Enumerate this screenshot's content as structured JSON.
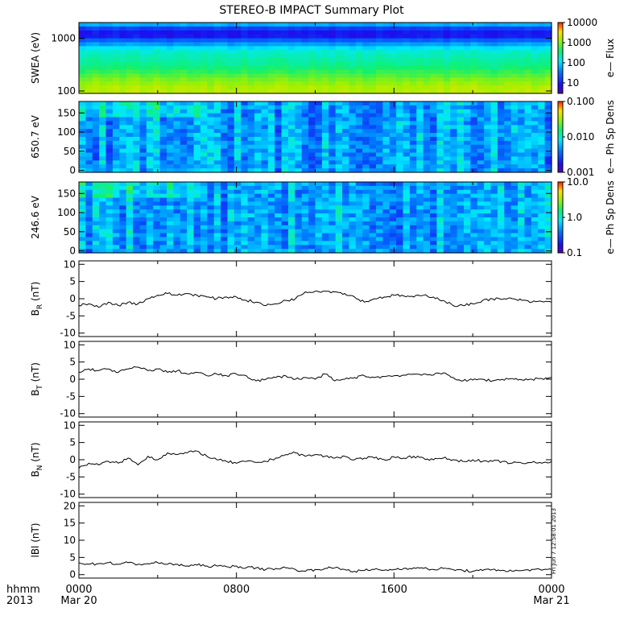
{
  "title": "STEREO-B IMPACT Summary Plot",
  "stamp": "Fri Jun  7 12:58:01 2013",
  "footer": {
    "left_top": "hhmm",
    "left_bottom": "2013",
    "ticks": [
      {
        "top": "0000",
        "bottom": "Mar 20",
        "hour": 0
      },
      {
        "top": "0800",
        "bottom": "",
        "hour": 8
      },
      {
        "top": "1600",
        "bottom": "",
        "hour": 16
      },
      {
        "top": "0000",
        "bottom": "Mar 21",
        "hour": 24
      }
    ]
  },
  "chart_data": [
    {
      "type": "heatmap",
      "ylabel": "SWEA (eV)",
      "ylog": true,
      "ylim": [
        90,
        2000
      ],
      "yticks": [
        {
          "v": 1000,
          "label": "1000"
        },
        {
          "v": 100,
          "label": "100"
        }
      ],
      "cbar_label": "e— Flux",
      "cbar_log": true,
      "cbar_range": [
        3,
        10000
      ],
      "cbar_ticks": [
        {
          "v": 10000,
          "label": "10000"
        },
        {
          "v": 1000,
          "label": "1000"
        },
        {
          "v": 100,
          "label": "100"
        },
        {
          "v": 10,
          "label": "10"
        }
      ],
      "profile": [
        [
          0,
          60
        ],
        [
          0.08,
          10
        ],
        [
          0.16,
          7
        ],
        [
          0.25,
          30
        ],
        [
          0.38,
          160
        ],
        [
          0.5,
          230
        ],
        [
          0.62,
          320
        ],
        [
          0.74,
          600
        ],
        [
          0.85,
          1100
        ],
        [
          0.93,
          1500
        ],
        [
          1,
          1700
        ]
      ],
      "variation": 0.25
    },
    {
      "type": "heatmap",
      "ylabel": "650.7 eV",
      "ylog": false,
      "ylim": [
        -5,
        180
      ],
      "yticks": [
        {
          "v": 150,
          "label": "150"
        },
        {
          "v": 100,
          "label": "100"
        },
        {
          "v": 50,
          "label": "50"
        },
        {
          "v": 0,
          "label": "0"
        }
      ],
      "cbar_label": "e— Ph Sp Dens",
      "cbar_log": true,
      "cbar_range": [
        0.001,
        0.1
      ],
      "cbar_ticks": [
        {
          "v": 0.1,
          "label": "0.100"
        },
        {
          "v": 0.01,
          "label": "0.010"
        },
        {
          "v": 0.001,
          "label": "0.001"
        }
      ],
      "level": 0.005,
      "variation": 0.6
    },
    {
      "type": "heatmap",
      "ylabel": "246.6 eV",
      "ylog": false,
      "ylim": [
        -5,
        180
      ],
      "yticks": [
        {
          "v": 150,
          "label": "150"
        },
        {
          "v": 100,
          "label": "100"
        },
        {
          "v": 50,
          "label": "50"
        },
        {
          "v": 0,
          "label": "0"
        }
      ],
      "cbar_label": "e— Ph Sp Dens",
      "cbar_log": true,
      "cbar_range": [
        0.1,
        10
      ],
      "cbar_ticks": [
        {
          "v": 10,
          "label": "10.0"
        },
        {
          "v": 1,
          "label": "1.0"
        },
        {
          "v": 0.1,
          "label": "0.1"
        }
      ],
      "level": 0.55,
      "variation": 0.6
    },
    {
      "type": "line",
      "ylabel": "B",
      "ysub": "R",
      "yunit": " (nT)",
      "ylim": [
        -11,
        11
      ],
      "yticks": [
        {
          "v": 10,
          "label": "10"
        },
        {
          "v": 5,
          "label": "5"
        },
        {
          "v": 0,
          "label": "0"
        },
        {
          "v": -5,
          "label": "-5"
        },
        {
          "v": -10,
          "label": "-10"
        }
      ],
      "x": [
        0,
        0.5,
        1,
        1.5,
        2,
        2.5,
        3,
        3.5,
        4,
        4.5,
        5,
        5.5,
        6,
        6.5,
        7,
        7.5,
        8,
        8.5,
        9,
        9.5,
        10,
        10.5,
        11,
        11.5,
        12,
        12.5,
        13,
        13.5,
        14,
        14.5,
        15,
        15.5,
        16,
        16.5,
        17,
        17.5,
        18,
        18.5,
        19,
        19.5,
        20,
        20.5,
        21,
        21.5,
        22,
        22.5,
        23,
        23.5,
        24
      ],
      "y": [
        -2,
        -1.5,
        -2.5,
        -1,
        -2,
        -1,
        -1.5,
        0,
        1,
        1.5,
        1,
        1.5,
        1,
        0.5,
        0,
        0.5,
        0.5,
        -0.5,
        -1,
        -2,
        -1.5,
        -0.5,
        0,
        2,
        2.2,
        2.2,
        2,
        1.5,
        0.5,
        -1,
        0,
        0.5,
        1,
        0.8,
        0.5,
        1,
        0.5,
        -0.5,
        -2,
        -2,
        -1.5,
        -0.5,
        0,
        -0.2,
        0,
        -0.5,
        -1,
        -0.8,
        -1
      ]
    },
    {
      "type": "line",
      "ylabel": "B",
      "ysub": "T",
      "yunit": " (nT)",
      "ylim": [
        -11,
        11
      ],
      "yticks": [
        {
          "v": 10,
          "label": "10"
        },
        {
          "v": 5,
          "label": "5"
        },
        {
          "v": 0,
          "label": "0"
        },
        {
          "v": -5,
          "label": "-5"
        },
        {
          "v": -10,
          "label": "-10"
        }
      ],
      "x": [
        0,
        0.5,
        1,
        1.5,
        2,
        2.5,
        3,
        3.5,
        4,
        4.5,
        5,
        5.5,
        6,
        6.5,
        7,
        7.5,
        8,
        8.5,
        9,
        9.5,
        10,
        10.5,
        11,
        11.5,
        12,
        12.5,
        13,
        13.5,
        14,
        14.5,
        15,
        15.5,
        16,
        16.5,
        17,
        17.5,
        18,
        18.5,
        19,
        19.5,
        20,
        20.5,
        21,
        21.5,
        22,
        22.5,
        23,
        23.5,
        24
      ],
      "y": [
        2,
        3,
        2.5,
        3,
        2,
        3,
        3.5,
        2.5,
        3,
        2,
        2.5,
        1.5,
        2,
        1,
        1.5,
        1,
        1.5,
        1,
        -0.5,
        0,
        0.5,
        1,
        0,
        0.5,
        0,
        1.5,
        -0.5,
        0,
        0.5,
        1,
        0.5,
        0.8,
        1,
        1.2,
        1.5,
        1.5,
        1.2,
        1.8,
        0.5,
        -0.5,
        -0.2,
        0,
        -0.5,
        0,
        0.2,
        -0.2,
        0,
        0.2,
        0.5
      ]
    },
    {
      "type": "line",
      "ylabel": "B",
      "ysub": "N",
      "yunit": " (nT)",
      "ylim": [
        -11,
        11
      ],
      "yticks": [
        {
          "v": 10,
          "label": "10"
        },
        {
          "v": 5,
          "label": "5"
        },
        {
          "v": 0,
          "label": "0"
        },
        {
          "v": -5,
          "label": "-5"
        },
        {
          "v": -10,
          "label": "-10"
        }
      ],
      "x": [
        0,
        0.5,
        1,
        1.5,
        2,
        2.5,
        3,
        3.5,
        4,
        4.5,
        5,
        5.5,
        6,
        6.5,
        7,
        7.5,
        8,
        8.5,
        9,
        9.5,
        10,
        10.5,
        11,
        11.5,
        12,
        12.5,
        13,
        13.5,
        14,
        14.5,
        15,
        15.5,
        16,
        16.5,
        17,
        17.5,
        18,
        18.5,
        19,
        19.5,
        20,
        20.5,
        21,
        21.5,
        22,
        22.5,
        23,
        23.5,
        24
      ],
      "y": [
        -2.5,
        -1,
        -1.5,
        -0.5,
        -1,
        0.5,
        -1.5,
        1,
        0,
        2,
        1.5,
        2,
        2.5,
        1,
        0,
        -0.5,
        -1,
        -0.5,
        -0.8,
        -0.5,
        0.5,
        1.5,
        2,
        1,
        1.5,
        1,
        0.5,
        1,
        0,
        0.5,
        0.5,
        0,
        0.8,
        0.5,
        1,
        0.5,
        0,
        0.5,
        0,
        -0.5,
        0,
        -0.5,
        -0.5,
        -0.5,
        -1,
        -1,
        -0.8,
        -1,
        -0.5
      ]
    },
    {
      "type": "line",
      "ylabel": "lBl",
      "ysub": "",
      "yunit": " (nT)",
      "ylim": [
        -1,
        21
      ],
      "yticks": [
        {
          "v": 20,
          "label": "20"
        },
        {
          "v": 15,
          "label": "15"
        },
        {
          "v": 10,
          "label": "10"
        },
        {
          "v": 5,
          "label": "5"
        },
        {
          "v": 0,
          "label": "0"
        }
      ],
      "x": [
        0,
        0.5,
        1,
        1.5,
        2,
        2.5,
        3,
        3.5,
        4,
        4.5,
        5,
        5.5,
        6,
        6.5,
        7,
        7.5,
        8,
        8.5,
        9,
        9.5,
        10,
        10.5,
        11,
        11.5,
        12,
        12.5,
        13,
        13.5,
        14,
        14.5,
        15,
        15.5,
        16,
        16.5,
        17,
        17.5,
        18,
        18.5,
        19,
        19.5,
        20,
        20.5,
        21,
        21.5,
        22,
        22.5,
        23,
        23.5,
        24
      ],
      "y": [
        3.5,
        3,
        3.2,
        3.5,
        3,
        3.5,
        3,
        3.2,
        3.5,
        3,
        3,
        2.5,
        2.8,
        2.5,
        2.5,
        2.3,
        2.5,
        2,
        2,
        1.5,
        1.8,
        2,
        1.5,
        1,
        1.5,
        1.8,
        2,
        1.5,
        1,
        1.2,
        1.5,
        1.3,
        1.5,
        1.8,
        2,
        1.8,
        1.5,
        1.8,
        1.5,
        1.2,
        1,
        1.2,
        1.5,
        1.3,
        1,
        1.2,
        1.5,
        1.3,
        1.5
      ]
    }
  ]
}
